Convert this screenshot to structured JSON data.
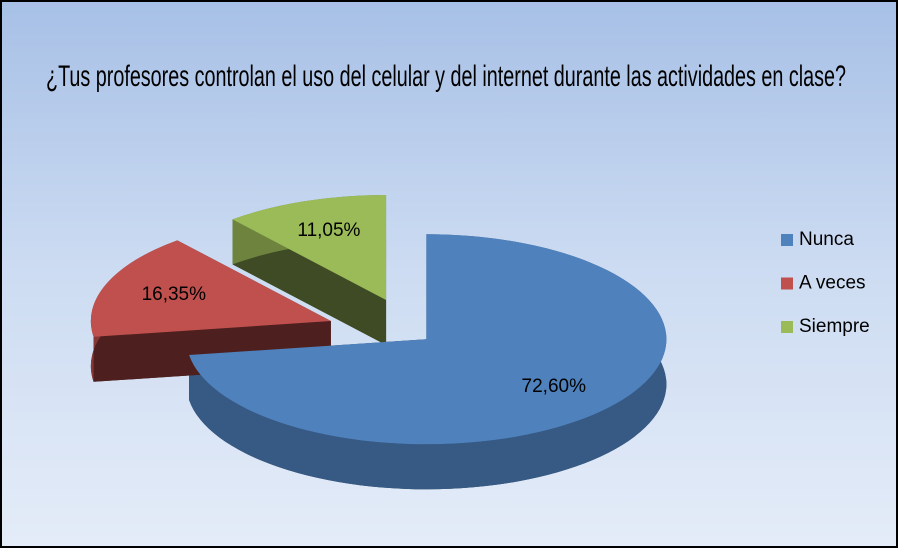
{
  "chart_data": {
    "type": "pie3d",
    "title": "¿Tus profesores controlan el uso del celular y del internet durante las actividades en clase?",
    "categories": [
      "Nunca",
      "A veces",
      "Siempre"
    ],
    "values": [
      72.6,
      16.35,
      11.05
    ],
    "value_labels": [
      "72,60%",
      "16,35%",
      "11,05%"
    ],
    "colors": [
      "#4f81bd",
      "#c0504d",
      "#9bbb59"
    ],
    "legend": "right"
  }
}
